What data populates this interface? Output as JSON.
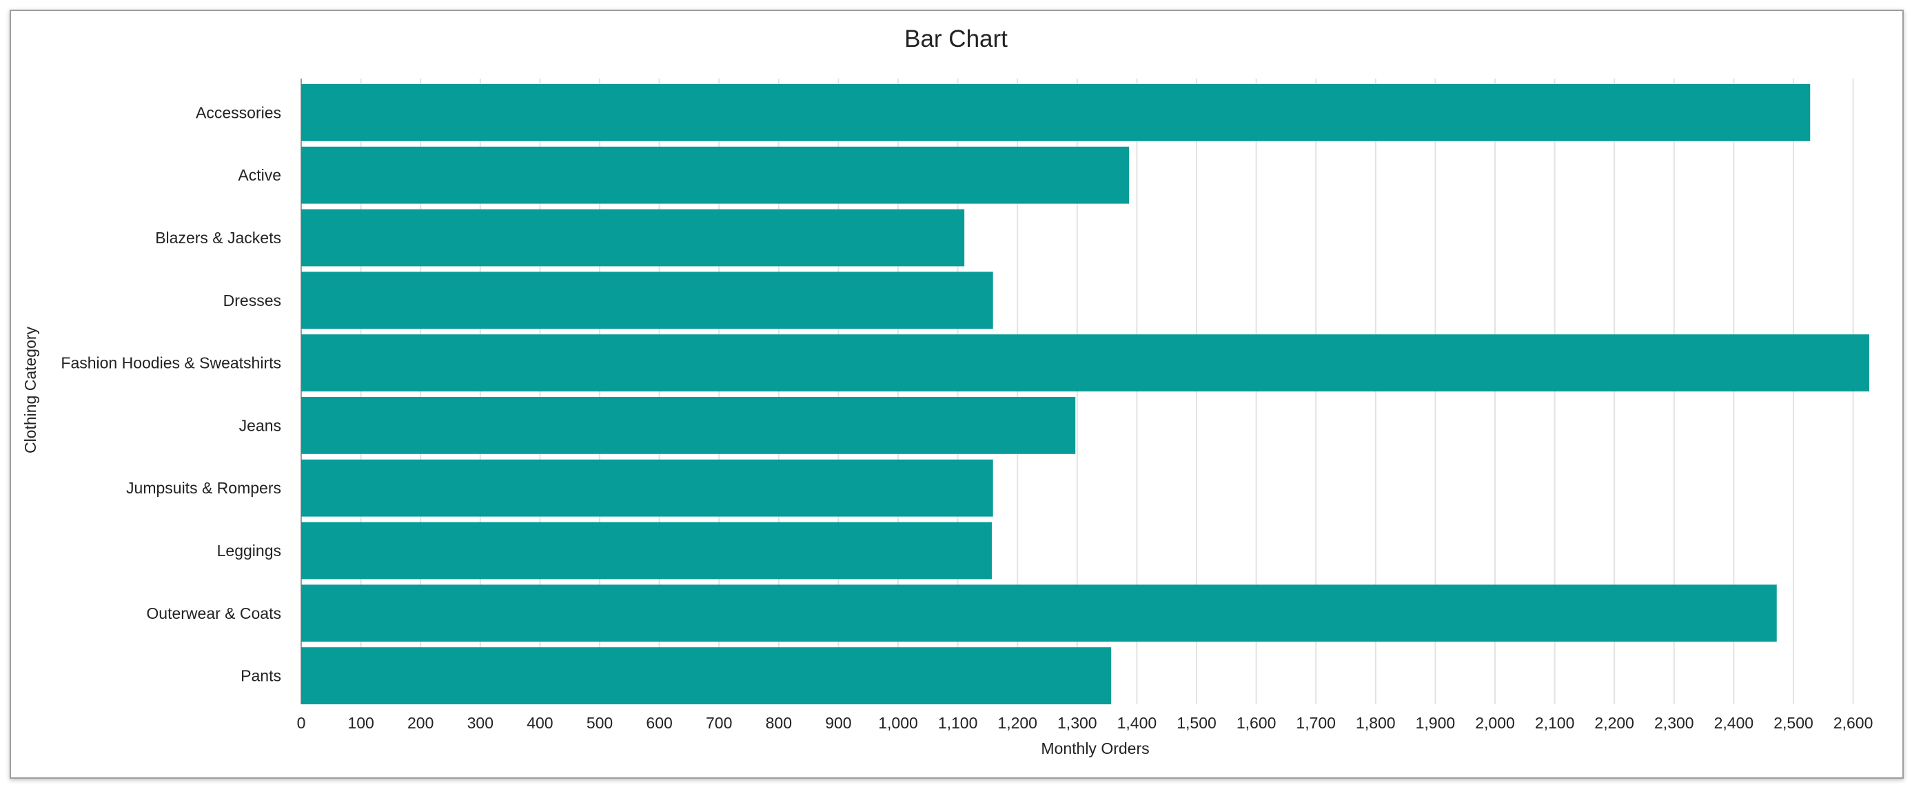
{
  "chart_data": {
    "type": "bar",
    "orientation": "horizontal",
    "title": "Bar Chart",
    "xlabel": "Monthly Orders",
    "ylabel": "Clothing Category",
    "categories": [
      "Accessories",
      "Active",
      "Blazers & Jackets",
      "Dresses",
      "Fashion Hoodies & Sweatshirts",
      "Jeans",
      "Jumpsuits & Rompers",
      "Leggings",
      "Outerwear & Coats",
      "Pants"
    ],
    "values": [
      2528,
      1387,
      1111,
      1159,
      2627,
      1297,
      1159,
      1157,
      2472,
      1357
    ],
    "xlim": [
      0,
      2650
    ],
    "xticks": [
      0,
      100,
      200,
      300,
      400,
      500,
      600,
      700,
      800,
      900,
      1000,
      1100,
      1200,
      1300,
      1400,
      1500,
      1600,
      1700,
      1800,
      1900,
      2000,
      2100,
      2200,
      2300,
      2400,
      2500,
      2600
    ],
    "xtick_labels": [
      "0",
      "100",
      "200",
      "300",
      "400",
      "500",
      "600",
      "700",
      "800",
      "900",
      "1,000",
      "1,100",
      "1,200",
      "1,300",
      "1,400",
      "1,500",
      "1,600",
      "1,700",
      "1,800",
      "1,900",
      "2,000",
      "2,100",
      "2,200",
      "2,300",
      "2,400",
      "2,500",
      "2,600"
    ],
    "grid": true,
    "bar_color": "#089c98",
    "grid_color": "#e3e3e3"
  }
}
